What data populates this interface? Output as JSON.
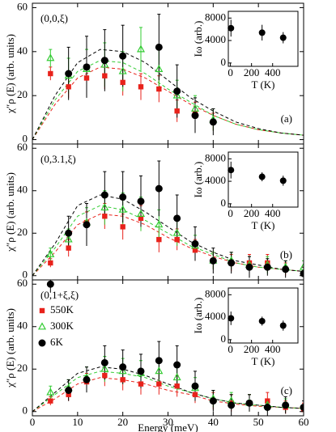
{
  "chart_data": [
    {
      "type": "scatter",
      "panel_label": "(0,0,ξ)",
      "tag": "(a)",
      "ylabel": "χ″ρ (E) (arb. units)",
      "xlim": [
        0,
        60
      ],
      "ylim": [
        -2,
        62
      ],
      "xticks": [
        0,
        10,
        20,
        30,
        40,
        50,
        60
      ],
      "yticks": [
        0,
        20,
        40,
        60
      ],
      "legend": false,
      "series": [
        {
          "name": "550K",
          "color": "#e8221b",
          "marker": "square",
          "x": [
            4,
            8,
            12,
            16,
            20,
            24,
            28,
            32,
            36,
            40
          ],
          "values": [
            30,
            24,
            28,
            29,
            26,
            24,
            23,
            13,
            12,
            8
          ],
          "errors": [
            3,
            5,
            6,
            6,
            6,
            6,
            6,
            5,
            5,
            4
          ]
        },
        {
          "name": "300K",
          "color": "#33cc33",
          "marker": "triangle",
          "x": [
            4,
            8,
            12,
            16,
            20,
            24,
            28,
            32,
            36,
            40
          ],
          "values": [
            37,
            29,
            32,
            34,
            31,
            41,
            32,
            20,
            14,
            9
          ],
          "errors": [
            4,
            8,
            9,
            10,
            9,
            10,
            9,
            7,
            6,
            5
          ]
        },
        {
          "name": "6K",
          "color": "#000000",
          "marker": "circle",
          "x": [
            8,
            12,
            16,
            20,
            28,
            32,
            36,
            40
          ],
          "values": [
            30,
            33,
            36,
            38,
            42,
            22,
            11,
            8
          ],
          "errors": [
            12,
            14,
            14,
            14,
            15,
            12,
            8,
            6
          ]
        }
      ],
      "fit_x": [
        0,
        5,
        10,
        15,
        20,
        25,
        30,
        35,
        40,
        45,
        50,
        55,
        60
      ],
      "fits": [
        {
          "color": "#e8221b",
          "values": [
            0,
            16,
            28,
            33,
            32,
            28,
            22,
            16,
            11,
            7,
            4.5,
            3,
            2
          ]
        },
        {
          "color": "#33cc33",
          "values": [
            0,
            18,
            31,
            36,
            35,
            30,
            23,
            17,
            11,
            7,
            4.5,
            3,
            2
          ]
        },
        {
          "color": "#000000",
          "values": [
            0,
            20,
            35,
            41,
            40,
            35,
            27,
            19,
            13,
            8,
            5,
            3,
            2
          ]
        }
      ],
      "inset": {
        "xlabel": "T (K)",
        "ylabel": "Iω (arb.)",
        "xlim": [
          -20,
          640
        ],
        "ylim": [
          -600,
          9200
        ],
        "xticks": [
          0,
          200,
          400
        ],
        "yticks": [
          0,
          4000,
          8000
        ],
        "x": [
          5,
          300,
          500
        ],
        "values": [
          6200,
          5400,
          4500
        ],
        "errors": [
          1500,
          1400,
          1000
        ]
      }
    },
    {
      "type": "scatter",
      "panel_label": "(0,3.1,ξ)",
      "tag": "(b)",
      "ylabel": "χ″ρ (E) (arb. units)",
      "xlim": [
        0,
        60
      ],
      "ylim": [
        -2,
        62
      ],
      "xticks": [
        0,
        10,
        20,
        30,
        40,
        50,
        60
      ],
      "yticks": [
        0,
        20,
        40,
        60
      ],
      "legend": false,
      "series": [
        {
          "name": "550K",
          "color": "#e8221b",
          "marker": "square",
          "x": [
            4,
            8,
            12,
            16,
            20,
            24,
            28,
            32,
            36,
            40,
            44,
            48,
            52,
            56,
            60
          ],
          "values": [
            6,
            13,
            25,
            28,
            23,
            27,
            17,
            17,
            12,
            7,
            6,
            6,
            6,
            3,
            1
          ],
          "errors": [
            2,
            4,
            5,
            6,
            6,
            6,
            6,
            5,
            5,
            4,
            4,
            4,
            4,
            3,
            3
          ]
        },
        {
          "name": "300K",
          "color": "#33cc33",
          "marker": "triangle",
          "x": [
            4,
            8,
            12,
            16,
            20,
            24,
            28,
            32,
            36,
            40,
            44,
            48,
            52,
            56,
            60
          ],
          "values": [
            10,
            17,
            25,
            32,
            31,
            29,
            24,
            20,
            14,
            7,
            7,
            5,
            5,
            4,
            4
          ],
          "errors": [
            3,
            5,
            7,
            8,
            8,
            8,
            7,
            6,
            5,
            4,
            4,
            4,
            4,
            3,
            3
          ]
        },
        {
          "name": "6K",
          "color": "#000000",
          "marker": "circle",
          "x": [
            8,
            12,
            16,
            20,
            24,
            28,
            32,
            36,
            40,
            44,
            48,
            52,
            56,
            60
          ],
          "values": [
            20,
            24,
            38,
            37,
            35,
            41,
            27,
            15,
            7,
            6,
            4,
            4,
            3,
            1
          ],
          "errors": [
            8,
            10,
            11,
            12,
            12,
            13,
            11,
            8,
            6,
            5,
            5,
            4,
            4,
            3
          ]
        }
      ],
      "fit_x": [
        0,
        5,
        10,
        15,
        20,
        25,
        30,
        35,
        40,
        45,
        50,
        55,
        60
      ],
      "fits": [
        {
          "color": "#e8221b",
          "values": [
            0,
            11,
            24,
            29,
            28,
            24,
            18,
            13,
            9,
            6,
            4,
            3,
            2
          ]
        },
        {
          "color": "#33cc33",
          "values": [
            0,
            13,
            28,
            33,
            31,
            26,
            20,
            14,
            10,
            6,
            4,
            3,
            2
          ]
        },
        {
          "color": "#000000",
          "values": [
            0,
            15,
            33,
            38,
            36,
            30,
            23,
            16,
            11,
            7,
            5,
            3,
            2
          ]
        }
      ],
      "inset": {
        "xlabel": "T (K)",
        "ylabel": "Iω (arb.)",
        "xlim": [
          -20,
          640
        ],
        "ylim": [
          -600,
          9200
        ],
        "xticks": [
          0,
          200,
          400
        ],
        "yticks": [
          0,
          4000,
          8000
        ],
        "x": [
          5,
          300,
          500
        ],
        "values": [
          6000,
          4800,
          4100
        ],
        "errors": [
          1500,
          800,
          900
        ]
      }
    },
    {
      "type": "scatter",
      "panel_label": "(0,1+ξ,ξ)",
      "tag": "(c)",
      "ylabel": "χ″ρ (E) (arb. units)",
      "xlabel": "Energy (meV)",
      "xlim": [
        0,
        60
      ],
      "ylim": [
        -2,
        62
      ],
      "xticks": [
        0,
        10,
        20,
        30,
        40,
        50,
        60
      ],
      "yticks": [
        0,
        20,
        40,
        60
      ],
      "legend": true,
      "series": [
        {
          "name": "550K",
          "color": "#e8221b",
          "marker": "square",
          "x": [
            4,
            8,
            12,
            16,
            20,
            24,
            28,
            32,
            36,
            40,
            44,
            48,
            52,
            56,
            60
          ],
          "values": [
            5,
            8,
            14,
            17,
            15,
            13,
            13,
            12,
            8,
            5,
            4,
            4,
            5,
            2,
            1
          ],
          "errors": [
            2,
            3,
            4,
            5,
            5,
            5,
            5,
            5,
            4,
            4,
            4,
            4,
            4,
            3,
            3
          ]
        },
        {
          "name": "300K",
          "color": "#33cc33",
          "marker": "triangle",
          "x": [
            4,
            8,
            12,
            16,
            20,
            24,
            28,
            32,
            36,
            40,
            44,
            48,
            52,
            56
          ],
          "values": [
            9,
            11,
            16,
            20,
            19,
            18,
            19,
            16,
            11,
            6,
            5,
            4,
            3,
            3
          ],
          "errors": [
            3,
            4,
            5,
            6,
            6,
            6,
            6,
            6,
            5,
            4,
            4,
            4,
            3,
            3
          ]
        },
        {
          "name": "6K",
          "color": "#000000",
          "marker": "circle",
          "x": [
            4,
            8,
            12,
            16,
            20,
            24,
            28,
            32,
            36,
            40,
            44,
            48,
            52,
            56,
            60
          ],
          "values": [
            60,
            10,
            15,
            23,
            21,
            19,
            24,
            22,
            12,
            5,
            3,
            4,
            2,
            3,
            2
          ],
          "errors": [
            4,
            5,
            6,
            8,
            8,
            8,
            9,
            9,
            7,
            5,
            5,
            4,
            4,
            4,
            3
          ]
        }
      ],
      "fit_x": [
        0,
        5,
        10,
        15,
        20,
        25,
        30,
        35,
        40,
        45,
        50,
        55,
        60
      ],
      "fits": [
        {
          "color": "#e8221b",
          "values": [
            0,
            6,
            13,
            16,
            15,
            13,
            10,
            8,
            5,
            3.5,
            2.5,
            2,
            1.5
          ]
        },
        {
          "color": "#33cc33",
          "values": [
            0,
            8,
            16,
            19,
            18,
            16,
            12,
            9,
            6,
            4,
            3,
            2,
            1.5
          ]
        },
        {
          "color": "#000000",
          "values": [
            0,
            9,
            18,
            21,
            20,
            17,
            13,
            9,
            6,
            4,
            3,
            2,
            1.5
          ]
        }
      ],
      "inset": {
        "xlabel": "T (K)",
        "ylabel": "Iω (arb.)",
        "xlim": [
          -20,
          640
        ],
        "ylim": [
          -600,
          9200
        ],
        "xticks": [
          0,
          200,
          400
        ],
        "yticks": [
          0,
          4000,
          8000
        ],
        "x": [
          5,
          300,
          500
        ],
        "values": [
          3800,
          3300,
          2500
        ],
        "errors": [
          1200,
          800,
          900
        ]
      }
    }
  ]
}
